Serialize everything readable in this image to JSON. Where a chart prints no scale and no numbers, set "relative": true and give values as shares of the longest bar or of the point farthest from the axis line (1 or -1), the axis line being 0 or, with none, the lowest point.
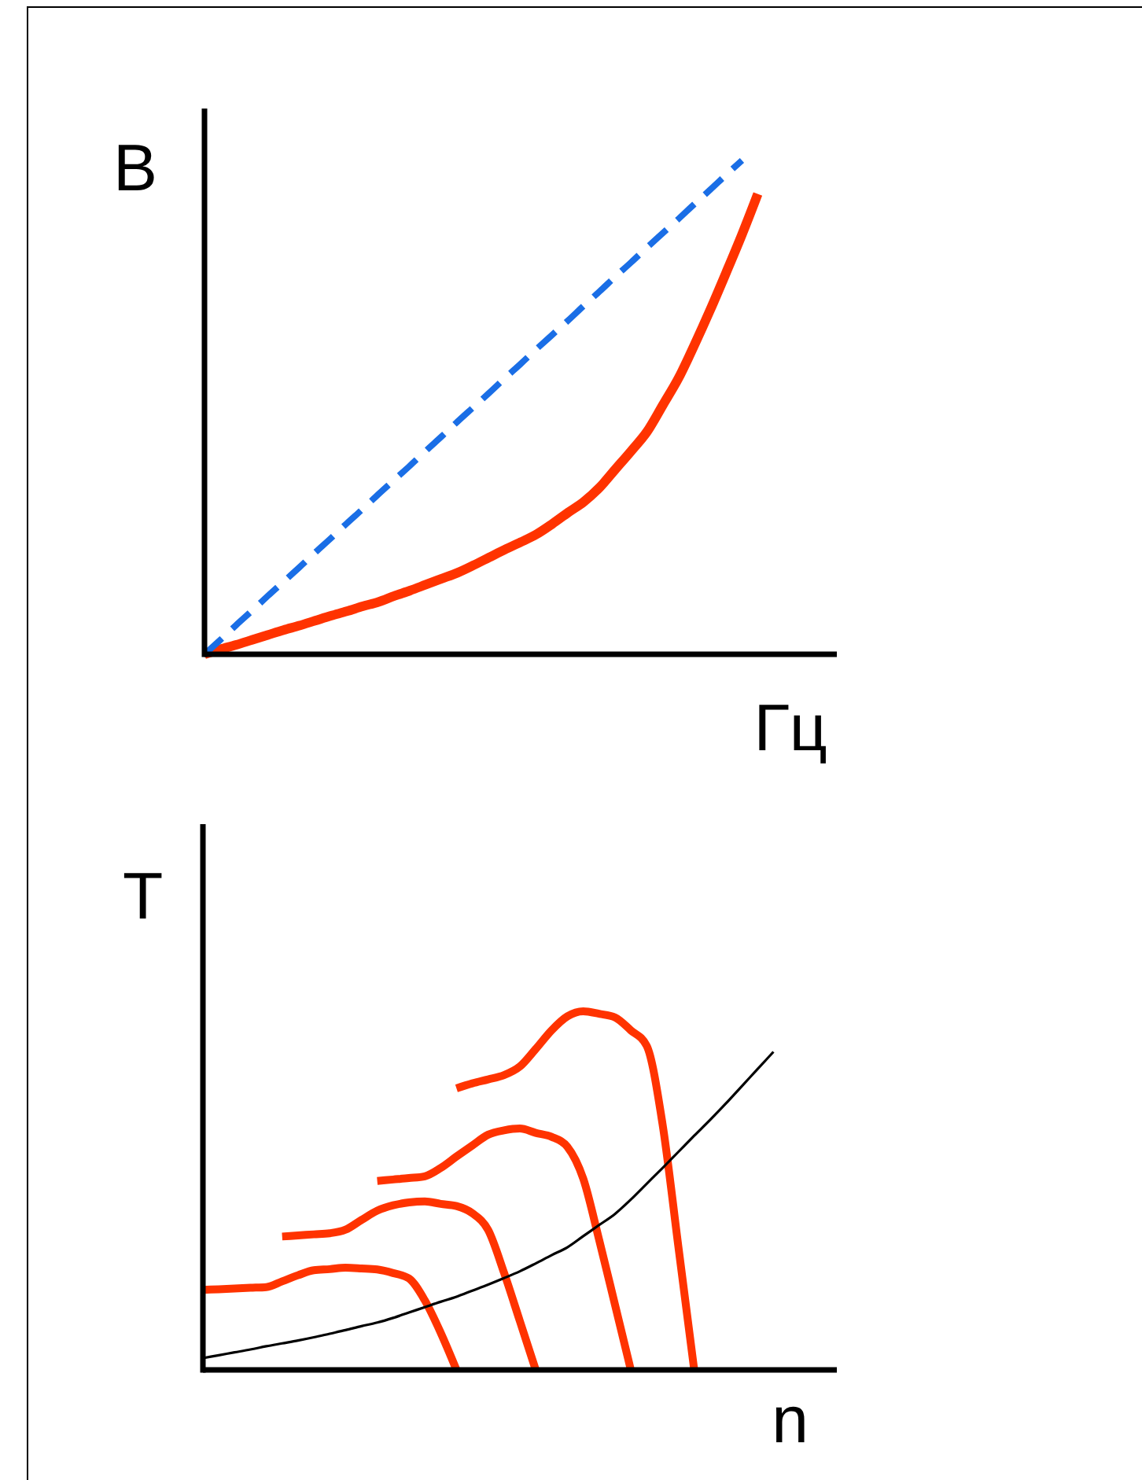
{
  "chart_data": [
    {
      "type": "line",
      "relative": true,
      "ylabel": "В",
      "xlabel": "Гц",
      "categories": [
        null,
        null,
        null,
        null,
        null,
        null,
        null,
        null,
        null,
        null,
        null,
        null,
        null,
        null,
        null,
        null,
        null,
        null,
        null,
        null,
        null,
        null,
        null,
        null,
        null,
        null,
        null,
        null,
        null,
        null,
        null,
        null,
        null,
        null,
        null,
        null,
        null,
        null,
        null,
        null,
        null
      ],
      "series": [
        {
          "color": "#ff3300",
          "values": [
            0,
            0.01,
            0.019,
            0.029,
            0.039,
            0.049,
            0.058,
            0.068,
            0.078,
            0.087,
            0.097,
            0.106,
            0.118,
            0.129,
            0.141,
            0.153,
            0.165,
            0.18,
            0.196,
            0.212,
            0.227,
            0.243,
            0.264,
            0.287,
            0.309,
            0.338,
            0.375,
            0.412,
            0.451,
            0.505,
            0.56,
            0.627,
            0.698,
            0.773,
            0.85,
            0.932,
            null,
            null,
            null,
            null,
            null
          ]
        },
        {
          "color": "#1a6ee6",
          "line_style": "dashed",
          "values": [
            0,
            0.029,
            0.059,
            0.088,
            0.118,
            0.147,
            0.176,
            0.206,
            0.235,
            0.265,
            0.294,
            0.324,
            0.353,
            0.382,
            0.412,
            0.441,
            0.471,
            0.5,
            0.529,
            0.559,
            0.588,
            0.618,
            0.647,
            0.676,
            0.706,
            0.735,
            0.765,
            0.794,
            0.824,
            0.853,
            0.882,
            0.912,
            0.941,
            0.971,
            1,
            null,
            null,
            null,
            null,
            null,
            null
          ]
        }
      ]
    },
    {
      "type": "line",
      "relative": true,
      "ylabel": "T",
      "xlabel": "n",
      "categories": [
        null,
        null,
        null,
        null,
        null,
        null,
        null,
        null,
        null,
        null,
        null,
        null,
        null,
        null,
        null,
        null,
        null,
        null,
        null,
        null,
        null,
        null,
        null,
        null,
        null,
        null,
        null,
        null,
        null,
        null,
        null,
        null,
        null,
        null,
        null,
        null,
        null,
        null,
        null,
        null,
        null
      ],
      "series": [
        {
          "color": "#ff3300",
          "values": [
            0.223,
            0.225,
            0.227,
            0.229,
            0.231,
            0.247,
            0.264,
            0.278,
            0.281,
            0.285,
            0.283,
            0.28,
            0.27,
            0.255,
            0.194,
            0.104,
            0,
            null,
            null,
            null,
            null,
            null,
            null,
            null,
            null,
            null,
            null,
            null,
            null,
            null,
            null,
            null,
            null,
            null,
            null,
            null,
            null,
            null,
            null,
            null,
            null
          ]
        },
        {
          "color": "#ff3300",
          "values": [
            null,
            null,
            null,
            null,
            null,
            0.372,
            0.375,
            0.378,
            0.381,
            0.391,
            0.418,
            0.444,
            0.459,
            0.467,
            0.47,
            0.463,
            0.457,
            0.437,
            0.39,
            0.271,
            0.136,
            0,
            null,
            null,
            null,
            null,
            null,
            null,
            null,
            null,
            null,
            null,
            null,
            null,
            null,
            null,
            null,
            null,
            null,
            null,
            null
          ]
        },
        {
          "color": "#ff3300",
          "values": [
            null,
            null,
            null,
            null,
            null,
            null,
            null,
            null,
            null,
            null,
            null,
            0.527,
            0.531,
            0.535,
            0.54,
            0.563,
            0.595,
            0.626,
            0.656,
            0.668,
            0.673,
            0.661,
            0.65,
            0.622,
            0.533,
            0.363,
            0.182,
            0,
            null,
            null,
            null,
            null,
            null,
            null,
            null,
            null,
            null,
            null,
            null,
            null,
            null
          ]
        },
        {
          "color": "#ff3300",
          "values": [
            null,
            null,
            null,
            null,
            null,
            null,
            null,
            null,
            null,
            null,
            null,
            null,
            null,
            null,
            null,
            null,
            0.785,
            0.799,
            0.81,
            0.822,
            0.846,
            0.895,
            0.947,
            0.986,
            1,
            0.993,
            0.983,
            0.947,
            0.904,
            0.686,
            0.344,
            0,
            null,
            null,
            null,
            null,
            null,
            null,
            null,
            null,
            null
          ]
        },
        {
          "color": "#000000",
          "values": [
            0.033,
            0.041,
            0.049,
            0.057,
            0.066,
            0.074,
            0.082,
            0.091,
            0.101,
            0.111,
            0.122,
            0.132,
            0.145,
            0.16,
            0.175,
            0.19,
            0.204,
            0.221,
            0.238,
            0.256,
            0.275,
            0.297,
            0.32,
            0.342,
            0.373,
            0.404,
            0.435,
            0.475,
            0.519,
            0.563,
            0.608,
            0.653,
            0.697,
            0.743,
            0.791,
            0.839,
            0.887,
            null,
            null,
            null,
            null
          ]
        }
      ]
    }
  ]
}
